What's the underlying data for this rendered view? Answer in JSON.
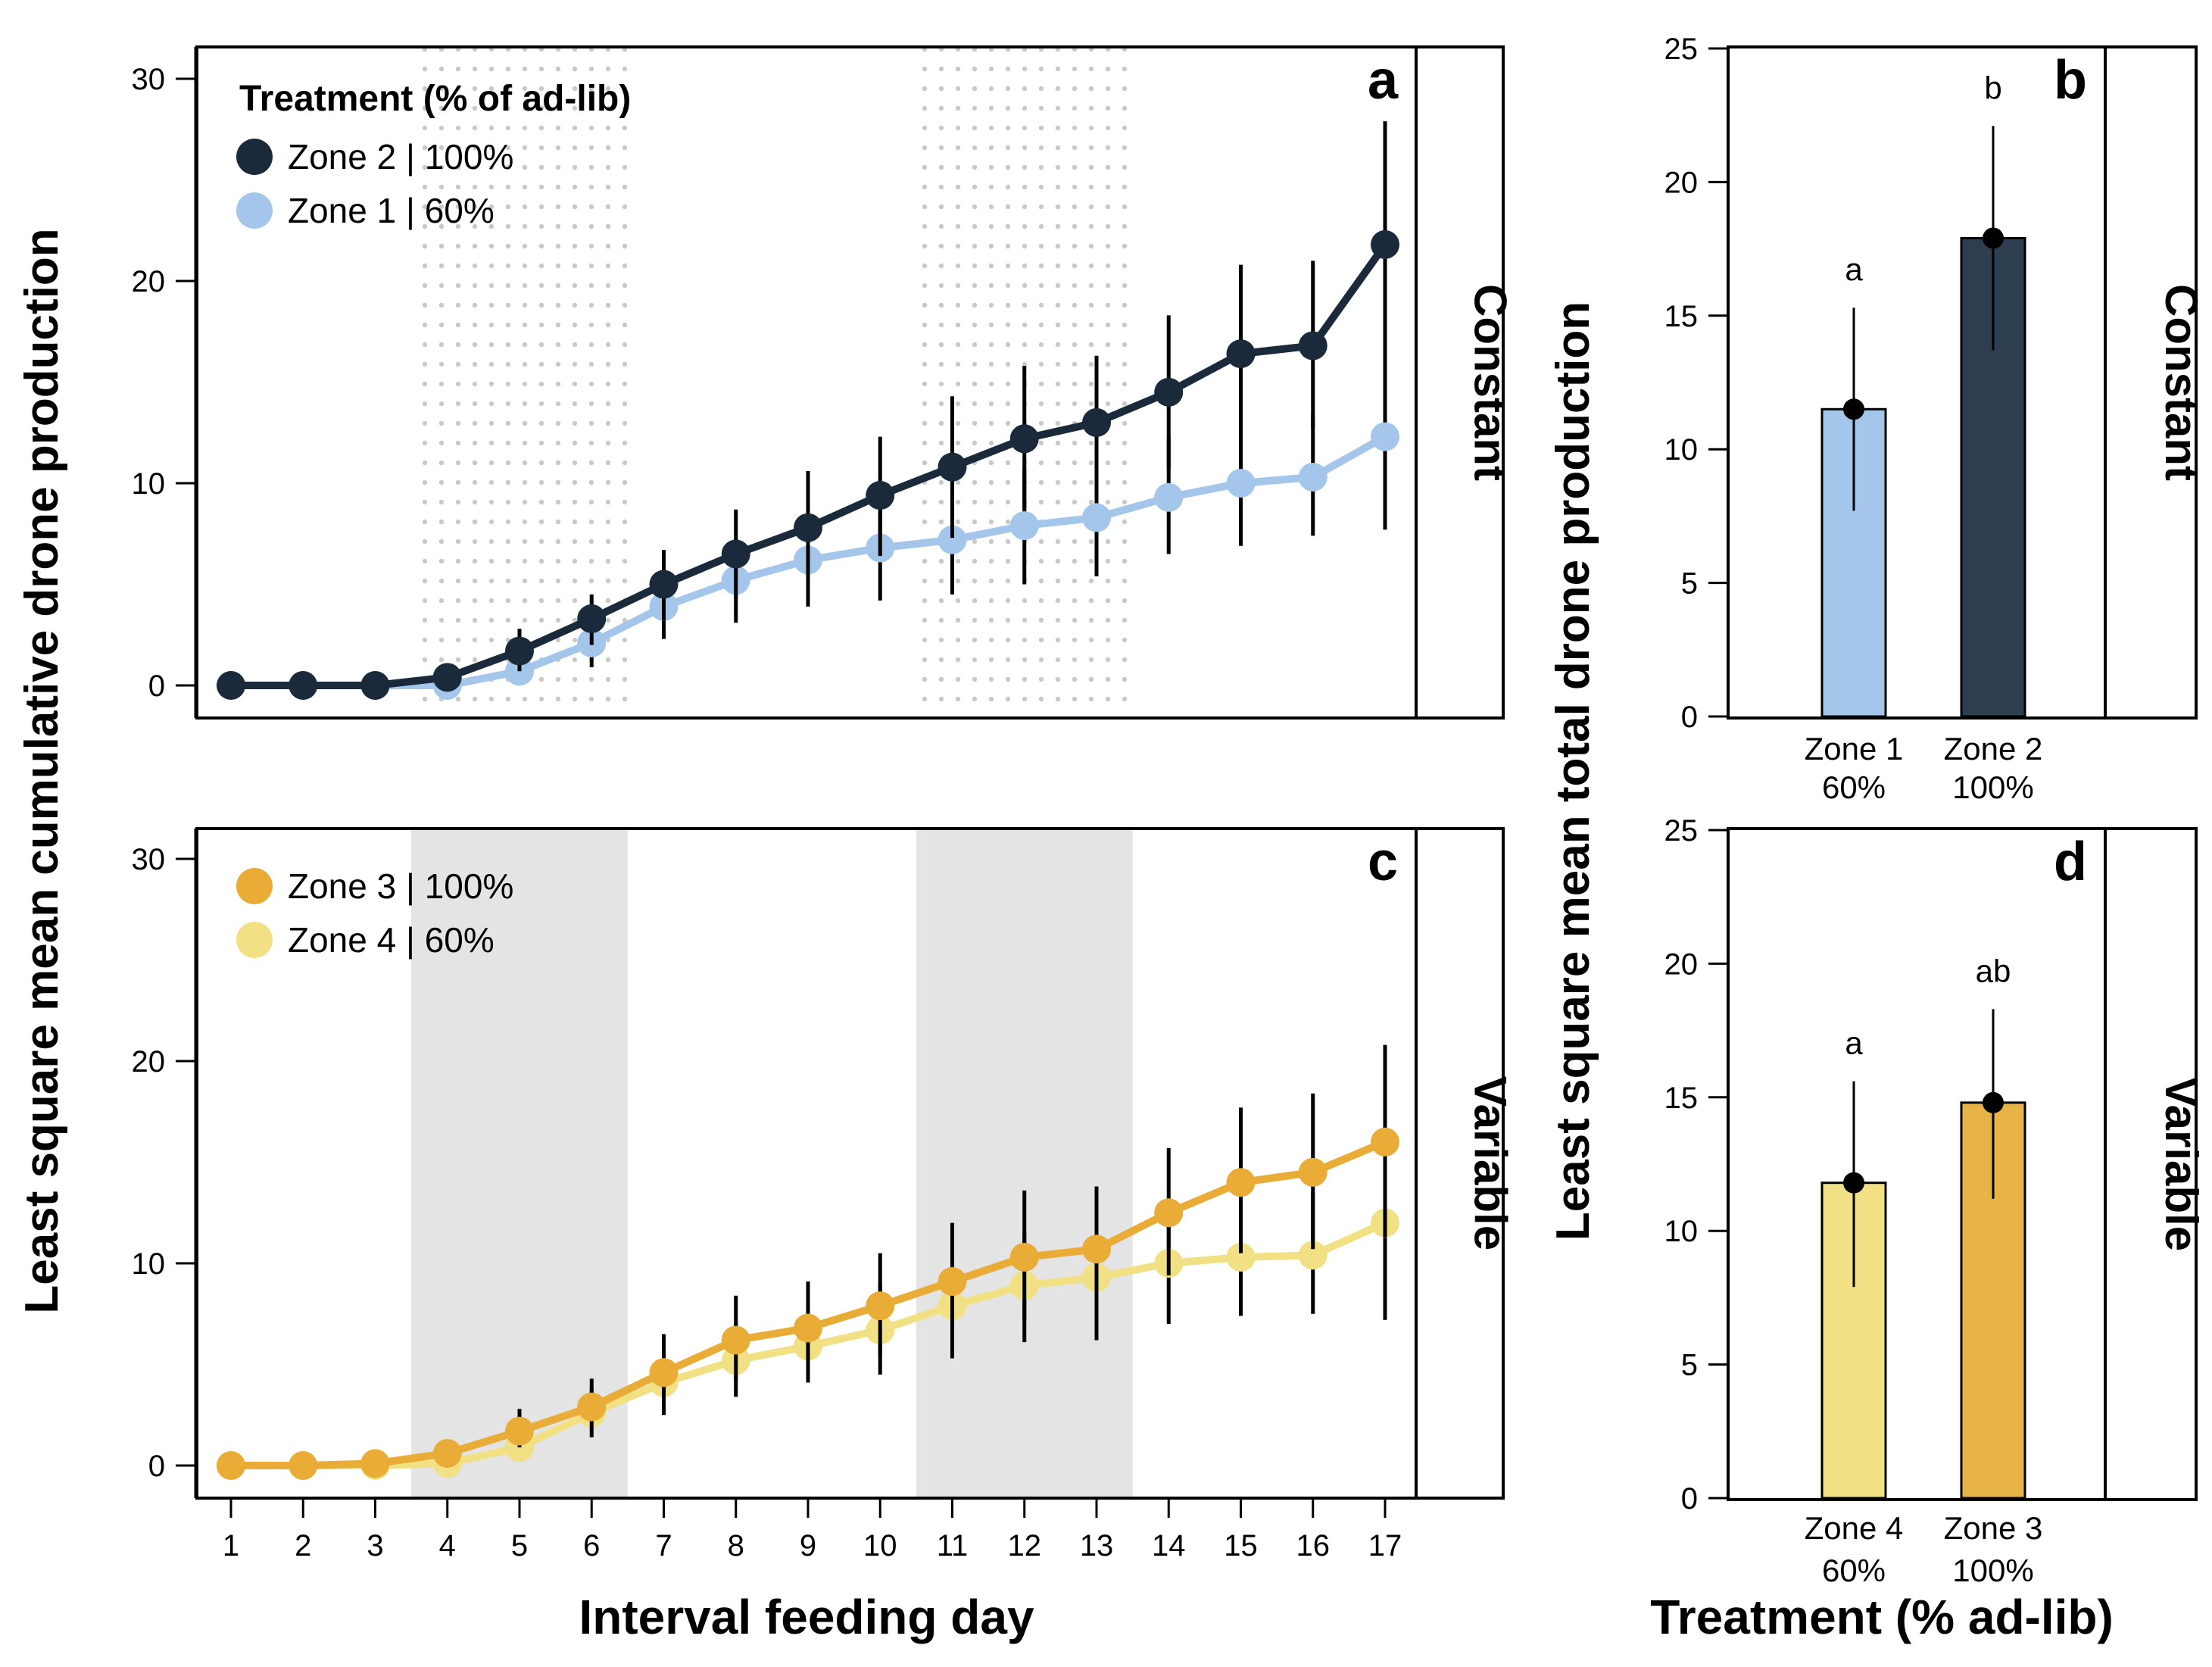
{
  "chart_data": [
    {
      "panel": "a",
      "type": "line",
      "strip_label": "Constant",
      "legend_title": "Treatment (% of ad-lib)",
      "x": [
        1,
        2,
        3,
        4,
        5,
        6,
        7,
        8,
        9,
        10,
        11,
        12,
        13,
        14,
        15,
        16,
        17
      ],
      "ylim": [
        0,
        30
      ],
      "yticks": [
        "0",
        "10",
        "20",
        "30"
      ],
      "shaded_ranges": [
        [
          3.5,
          6.5
        ],
        [
          10.5,
          13.5
        ]
      ],
      "shading_style": "dotted",
      "series": [
        {
          "name": "Zone 2 | 100%",
          "color": "#1b2a3a",
          "values": [
            0,
            0,
            0,
            0.4,
            1.7,
            3.3,
            5.0,
            6.5,
            7.8,
            9.4,
            10.8,
            12.2,
            13.0,
            14.5,
            16.4,
            16.8,
            21.8
          ],
          "err_low": [
            null,
            null,
            null,
            null,
            0.7,
            2.0,
            3.2,
            4.3,
            5.2,
            6.4,
            7.3,
            8.7,
            9.7,
            10.7,
            12.0,
            12.7,
            15.7
          ],
          "err_high": [
            null,
            null,
            null,
            null,
            2.8,
            4.5,
            6.7,
            8.7,
            10.6,
            12.3,
            14.3,
            15.8,
            16.3,
            18.3,
            20.8,
            21.0,
            27.9
          ]
        },
        {
          "name": "Zone 1 | 60%",
          "color": "#a4c6ea",
          "values": [
            0,
            0,
            0,
            0,
            0.7,
            2.1,
            3.9,
            5.2,
            6.2,
            6.8,
            7.2,
            7.9,
            8.3,
            9.3,
            10.0,
            10.3,
            12.3
          ],
          "err_low": [
            null,
            null,
            null,
            null,
            null,
            0.9,
            2.3,
            3.1,
            3.9,
            4.2,
            4.5,
            5.0,
            5.4,
            6.5,
            6.9,
            7.4,
            7.7
          ],
          "err_high": [
            null,
            null,
            null,
            null,
            null,
            3.4,
            5.3,
            7.3,
            8.5,
            9.4,
            9.9,
            10.8,
            11.3,
            12.3,
            13.3,
            13.4,
            16.8
          ]
        }
      ]
    },
    {
      "panel": "b",
      "type": "bar",
      "strip_label": "Constant",
      "categories": [
        [
          "Zone 1",
          "60%"
        ],
        [
          "Zone 2",
          "100%"
        ]
      ],
      "values": [
        11.5,
        17.9
      ],
      "err_low": [
        7.7,
        13.7
      ],
      "err_high": [
        15.3,
        22.1
      ],
      "letters": [
        "a",
        "b"
      ],
      "colors": [
        "#a4c6ea",
        "#2c3e4f"
      ],
      "ylim": [
        0,
        25
      ],
      "yticks": [
        "0",
        "5",
        "10",
        "15",
        "20",
        "25"
      ]
    },
    {
      "panel": "c",
      "type": "line",
      "strip_label": "Variable",
      "x": [
        1,
        2,
        3,
        4,
        5,
        6,
        7,
        8,
        9,
        10,
        11,
        12,
        13,
        14,
        15,
        16,
        17
      ],
      "ylim": [
        0,
        30
      ],
      "yticks": [
        "0",
        "10",
        "20",
        "30"
      ],
      "shaded_ranges": [
        [
          3.5,
          6.5
        ],
        [
          10.5,
          13.5
        ]
      ],
      "shading_style": "solid",
      "series": [
        {
          "name": "Zone 3 | 100%",
          "color": "#e8ac37",
          "values": [
            0,
            0,
            0.1,
            0.6,
            1.7,
            2.9,
            4.6,
            6.2,
            6.8,
            7.9,
            9.1,
            10.3,
            10.7,
            12.5,
            14.0,
            14.5,
            16.0
          ],
          "err_low": [
            null,
            null,
            null,
            null,
            0.9,
            1.8,
            2.9,
            4.2,
            4.6,
            5.4,
            6.3,
            7.2,
            7.6,
            9.4,
            10.5,
            10.7,
            11.3
          ],
          "err_high": [
            null,
            null,
            null,
            null,
            2.8,
            4.3,
            6.5,
            8.4,
            9.1,
            10.5,
            12.0,
            13.6,
            13.8,
            15.7,
            17.7,
            18.4,
            20.8
          ]
        },
        {
          "name": "Zone 4 | 60%",
          "color": "#f1e184",
          "values": [
            0,
            0,
            0,
            0.1,
            0.9,
            2.6,
            4.1,
            5.2,
            5.9,
            6.7,
            7.9,
            8.9,
            9.3,
            10.0,
            10.3,
            10.4,
            12.0
          ],
          "err_low": [
            null,
            null,
            null,
            null,
            null,
            1.4,
            2.5,
            3.4,
            4.1,
            4.5,
            5.3,
            6.1,
            6.2,
            7.0,
            7.4,
            7.5,
            7.2
          ],
          "err_high": [
            null,
            null,
            null,
            null,
            null,
            3.8,
            5.9,
            7.1,
            7.8,
            9.0,
            10.3,
            11.5,
            12.1,
            12.9,
            13.4,
            13.5,
            16.6
          ]
        }
      ]
    },
    {
      "panel": "d",
      "type": "bar",
      "strip_label": "Variable",
      "categories": [
        [
          "Zone 4",
          "60%"
        ],
        [
          "Zone 3",
          "100%"
        ]
      ],
      "values": [
        11.8,
        14.8
      ],
      "err_low": [
        7.9,
        11.2
      ],
      "err_high": [
        15.6,
        18.3
      ],
      "letters": [
        "a",
        "ab"
      ],
      "colors": [
        "#f1e184",
        "#e8b447"
      ],
      "ylim": [
        0,
        25
      ],
      "yticks": [
        "0",
        "5",
        "10",
        "15",
        "20",
        "25"
      ]
    }
  ],
  "labels": {
    "left_ylabel": "Least square mean cumulative drone production",
    "left_xlabel": "Interval feeding day",
    "right_ylabel": "Least square mean total drone production",
    "right_xlabel": "Treatment (% ad-lib)"
  }
}
